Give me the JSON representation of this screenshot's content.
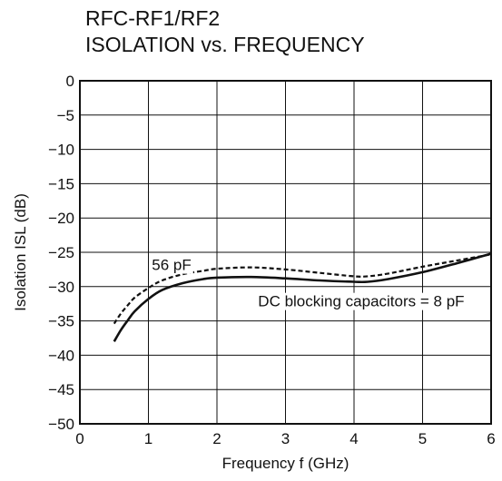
{
  "chart_data": {
    "type": "line",
    "title_lines": [
      "RFC-RF1/RF2",
      "ISOLATION vs. FREQUENCY"
    ],
    "xlabel": "Frequency  f (GHz)",
    "ylabel": "Isolation  ISL (dB)",
    "xlim": [
      0,
      6
    ],
    "ylim": [
      -50,
      0
    ],
    "x_ticks": [
      0,
      1,
      2,
      3,
      4,
      5,
      6
    ],
    "y_ticks": [
      0,
      -5,
      -10,
      -15,
      -20,
      -25,
      -30,
      -35,
      -40,
      -45,
      -50
    ],
    "x_tick_labels": [
      "0",
      "1",
      "2",
      "3",
      "4",
      "5",
      "6"
    ],
    "y_tick_labels": [
      "0",
      "−5",
      "−10",
      "−15",
      "−20",
      "−25",
      "−30",
      "−35",
      "−40",
      "−45",
      "−50"
    ],
    "grid": true,
    "series": [
      {
        "name": "DC blocking capacitors = 8 pF",
        "style": "solid",
        "color": "#111111",
        "x": [
          0.5,
          0.6,
          0.7,
          0.8,
          1.0,
          1.2,
          1.5,
          1.8,
          2.0,
          2.5,
          3.0,
          3.5,
          4.0,
          4.2,
          4.5,
          5.0,
          5.5,
          6.0
        ],
        "y": [
          -38.0,
          -36.3,
          -34.9,
          -33.6,
          -31.8,
          -30.5,
          -29.5,
          -28.9,
          -28.7,
          -28.6,
          -28.8,
          -29.1,
          -29.3,
          -29.3,
          -28.9,
          -27.9,
          -26.6,
          -25.2
        ]
      },
      {
        "name": "56 pF",
        "style": "dashed",
        "color": "#111111",
        "x": [
          0.5,
          0.6,
          0.7,
          0.8,
          1.0,
          1.2,
          1.5,
          1.8,
          2.0,
          2.5,
          3.0,
          3.5,
          4.0,
          4.2,
          4.5,
          5.0,
          5.5,
          6.0
        ],
        "y": [
          -35.4,
          -33.9,
          -32.7,
          -31.6,
          -30.2,
          -29.1,
          -28.2,
          -27.7,
          -27.4,
          -27.2,
          -27.5,
          -28.0,
          -28.5,
          -28.5,
          -28.1,
          -27.1,
          -26.2,
          -25.3
        ]
      }
    ],
    "annotations": [
      {
        "text": "56 pF",
        "x": 1.05,
        "y": -26.8
      },
      {
        "text": "DC blocking capacitors = 8 pF",
        "x": 2.6,
        "y": -32.1
      }
    ]
  }
}
